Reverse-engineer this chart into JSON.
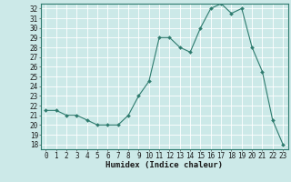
{
  "x": [
    0,
    1,
    2,
    3,
    4,
    5,
    6,
    7,
    8,
    9,
    10,
    11,
    12,
    13,
    14,
    15,
    16,
    17,
    18,
    19,
    20,
    21,
    22,
    23
  ],
  "y": [
    21.5,
    21.5,
    21.0,
    21.0,
    20.5,
    20.0,
    20.0,
    20.0,
    21.0,
    23.0,
    24.5,
    29.0,
    29.0,
    28.0,
    27.5,
    30.0,
    32.0,
    32.5,
    31.5,
    32.0,
    28.0,
    25.5,
    20.5,
    18.0
  ],
  "line_color": "#2e7b6e",
  "marker": "D",
  "marker_size": 2.0,
  "background_color": "#cce9e8",
  "grid_color": "#ffffff",
  "xlabel": "Humidex (Indice chaleur)",
  "ylim": [
    17.5,
    32.5
  ],
  "xlim": [
    -0.5,
    23.5
  ],
  "yticks": [
    18,
    19,
    20,
    21,
    22,
    23,
    24,
    25,
    26,
    27,
    28,
    29,
    30,
    31,
    32
  ],
  "xticks": [
    0,
    1,
    2,
    3,
    4,
    5,
    6,
    7,
    8,
    9,
    10,
    11,
    12,
    13,
    14,
    15,
    16,
    17,
    18,
    19,
    20,
    21,
    22,
    23
  ],
  "axis_fontsize": 5.5,
  "xlabel_fontsize": 6.5,
  "linewidth": 0.8
}
